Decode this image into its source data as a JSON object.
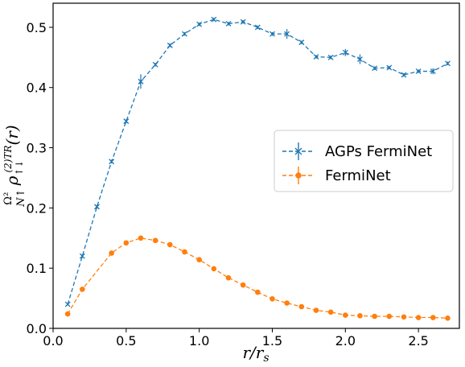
{
  "chart_data": {
    "type": "line",
    "xlabel": "r/r_s",
    "ylabel": "Ω²/N↑ ρ↑↓^(2)TR (r)",
    "xlim": [
      0.0,
      2.78
    ],
    "ylim": [
      0.0,
      0.54
    ],
    "xticks": [
      0.0,
      0.5,
      1.0,
      1.5,
      2.0,
      2.5
    ],
    "xtick_labels": [
      "0.0",
      "0.5",
      "1.0",
      "1.5",
      "2.0",
      "2.5"
    ],
    "yticks": [
      0.0,
      0.1,
      0.2,
      0.3,
      0.4,
      0.5
    ],
    "ytick_labels": [
      "0.0",
      "0.1",
      "0.2",
      "0.3",
      "0.4",
      "0.5"
    ],
    "legend_position": "center-right",
    "series": [
      {
        "name": "AGPs FermiNet",
        "color": "#1f77b4",
        "marker": "x",
        "linestyle": "dashed",
        "x": [
          0.1,
          0.2,
          0.3,
          0.4,
          0.5,
          0.6,
          0.7,
          0.8,
          0.9,
          1.0,
          1.1,
          1.2,
          1.3,
          1.4,
          1.5,
          1.6,
          1.7,
          1.8,
          1.9,
          2.0,
          2.1,
          2.2,
          2.3,
          2.4,
          2.5,
          2.6,
          2.7
        ],
        "y": [
          0.04,
          0.12,
          0.202,
          0.277,
          0.344,
          0.41,
          0.438,
          0.47,
          0.489,
          0.505,
          0.513,
          0.506,
          0.509,
          0.5,
          0.489,
          0.489,
          0.475,
          0.451,
          0.45,
          0.458,
          0.447,
          0.432,
          0.433,
          0.421,
          0.427,
          0.427,
          0.44
        ],
        "yerr": [
          0.002,
          0.003,
          0.003,
          0.003,
          0.003,
          0.012,
          0.003,
          0.003,
          0.003,
          0.003,
          0.003,
          0.003,
          0.003,
          0.003,
          0.003,
          0.008,
          0.003,
          0.003,
          0.003,
          0.006,
          0.008,
          0.003,
          0.003,
          0.003,
          0.003,
          0.005,
          0.003
        ]
      },
      {
        "name": "FermiNet",
        "color": "#ff7f0e",
        "marker": "o",
        "linestyle": "dashed",
        "x": [
          0.1,
          0.2,
          0.4,
          0.5,
          0.6,
          0.7,
          0.8,
          0.9,
          1.0,
          1.1,
          1.2,
          1.3,
          1.4,
          1.5,
          1.6,
          1.7,
          1.8,
          1.9,
          2.0,
          2.1,
          2.2,
          2.3,
          2.4,
          2.5,
          2.6,
          2.7
        ],
        "y": [
          0.024,
          0.065,
          0.125,
          0.142,
          0.15,
          0.146,
          0.139,
          0.127,
          0.114,
          0.099,
          0.084,
          0.072,
          0.06,
          0.049,
          0.042,
          0.036,
          0.03,
          0.027,
          0.022,
          0.021,
          0.02,
          0.02,
          0.019,
          0.018,
          0.018,
          0.017
        ],
        "yerr": [
          0.001,
          0.001,
          0.001,
          0.001,
          0.001,
          0.001,
          0.001,
          0.001,
          0.001,
          0.001,
          0.001,
          0.001,
          0.001,
          0.001,
          0.001,
          0.001,
          0.001,
          0.001,
          0.001,
          0.001,
          0.001,
          0.001,
          0.001,
          0.001,
          0.001,
          0.001
        ]
      }
    ]
  }
}
